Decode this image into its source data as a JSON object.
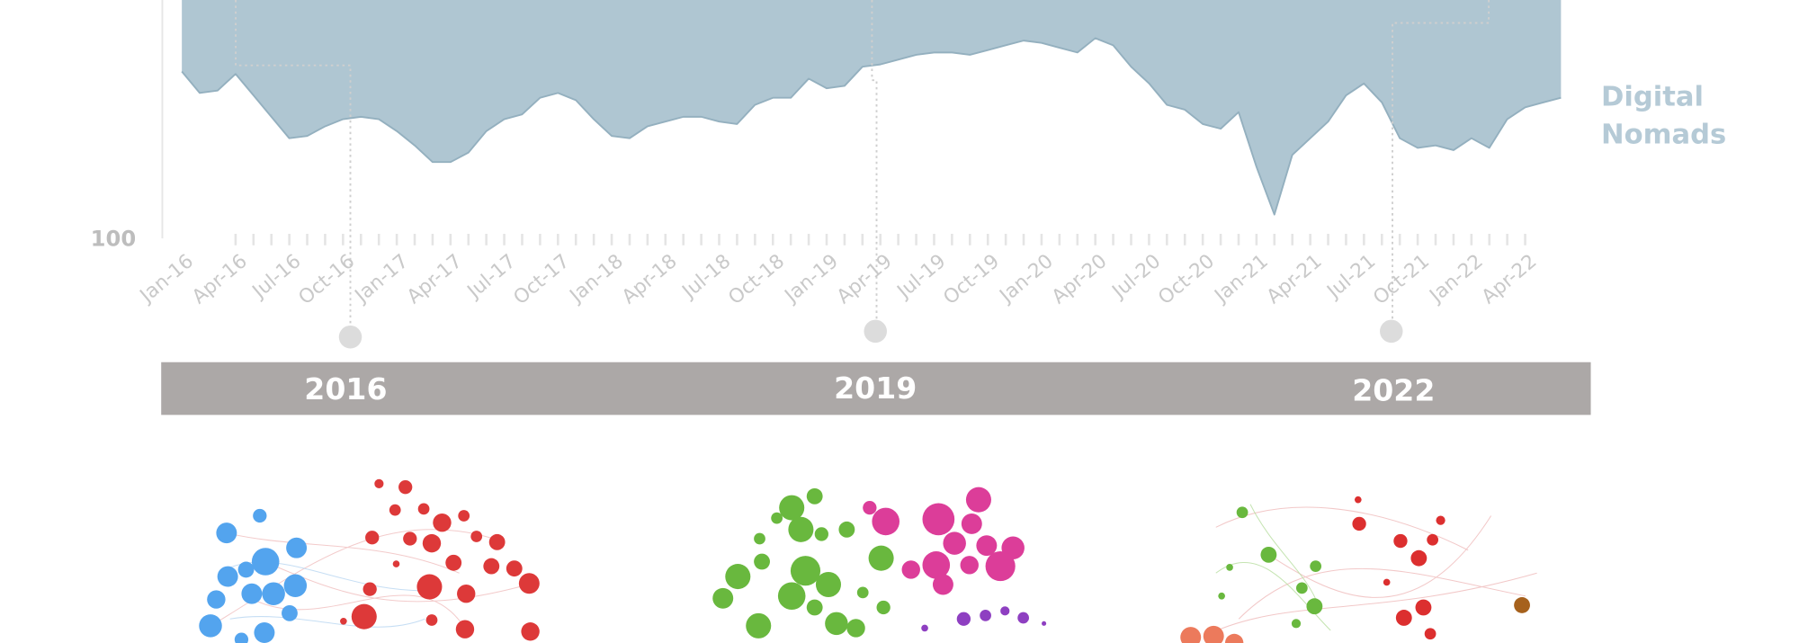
{
  "chart_data": {
    "type": "area",
    "categories": [
      "Jan-16",
      null,
      null,
      "Apr-16",
      null,
      null,
      "Jul-16",
      null,
      null,
      "Oct-16",
      null,
      null,
      "Jan-17",
      null,
      null,
      "Apr-17",
      null,
      null,
      "Jul-17",
      null,
      null,
      "Oct-17",
      null,
      null,
      "Jan-18",
      null,
      null,
      "Apr-18",
      null,
      null,
      "Jul-18",
      null,
      null,
      "Oct-18",
      null,
      null,
      "Jan-19",
      null,
      null,
      "Apr-19",
      null,
      null,
      "Jul-19",
      null,
      null,
      "Oct-19",
      null,
      null,
      "Jan-20",
      null,
      null,
      "Apr-20",
      null,
      null,
      "Jul-20",
      null,
      null,
      "Oct-20",
      null,
      null,
      "Jan-21",
      null,
      null,
      "Apr-21",
      null,
      null,
      "Jul-21",
      null,
      null,
      "Oct-21",
      null,
      null,
      "Jan-22",
      null,
      null,
      "Apr-22",
      null,
      null
    ],
    "series": [
      {
        "name": "Digital Nomads",
        "color": "#afc6d2",
        "values": [
          30,
          39,
          38,
          31,
          40,
          49,
          58,
          57,
          53,
          50,
          49,
          50,
          55,
          61,
          68,
          68,
          64,
          55,
          50,
          48,
          41,
          39,
          42,
          50,
          57,
          58,
          53,
          51,
          49,
          49,
          51,
          52,
          44,
          41,
          41,
          33,
          37,
          36,
          28,
          27,
          25,
          23,
          22,
          22,
          23,
          21,
          19,
          17,
          18,
          20,
          22,
          16,
          19,
          28,
          35,
          44,
          46,
          52,
          54,
          47,
          70,
          90,
          65,
          58,
          51,
          40,
          35,
          43,
          58,
          62,
          61,
          63,
          58,
          62,
          50,
          45,
          43,
          41
        ]
      }
    ],
    "ylim": [
      100,
      0
    ],
    "yticks": [
      100
    ]
  },
  "timeline": [
    "2016",
    "2019",
    "2022"
  ]
}
